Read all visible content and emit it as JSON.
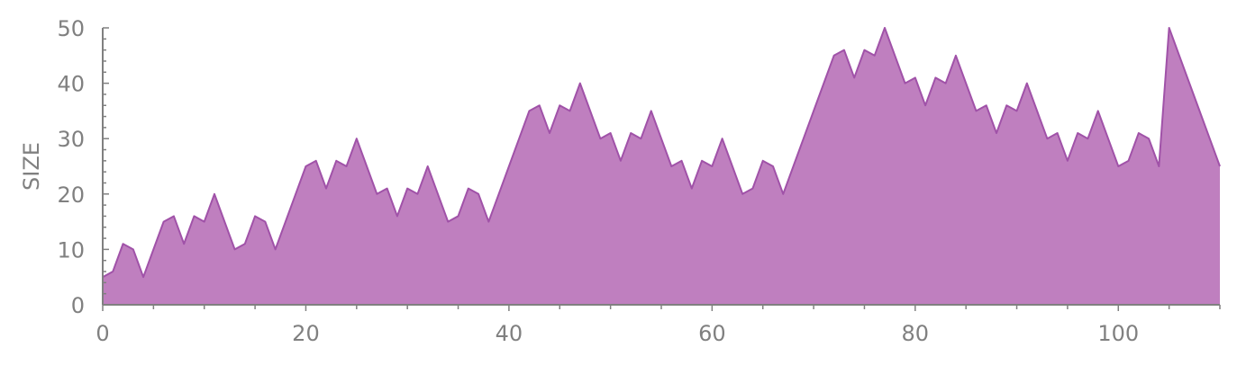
{
  "chart_data": {
    "type": "area",
    "title": "",
    "xlabel": "",
    "ylabel": "SIZE",
    "xlim": [
      0,
      110
    ],
    "ylim": [
      0,
      50
    ],
    "x_ticks": [
      0,
      20,
      40,
      60,
      80,
      100
    ],
    "y_ticks": [
      0,
      10,
      20,
      30,
      40,
      50
    ],
    "x_tick_labels": [
      "0",
      "20",
      "40",
      "60",
      "80",
      "100"
    ],
    "y_tick_labels": [
      "0",
      "10",
      "20",
      "30",
      "40",
      "50"
    ],
    "grid": false,
    "fill_color": "#bf7fbf",
    "line_color": "#a052a8",
    "axis_color": "#808080",
    "series": [
      {
        "x": [
          0,
          1,
          2,
          3,
          4,
          5,
          6,
          7,
          8,
          9,
          10,
          11,
          12,
          13,
          14,
          15,
          16,
          17,
          18,
          19,
          20,
          21,
          22,
          23,
          24,
          25,
          26,
          27,
          28,
          29,
          30,
          31,
          32,
          33,
          34,
          35,
          36,
          37,
          38,
          39,
          40,
          41,
          42,
          43,
          44,
          45,
          46,
          47,
          48,
          49,
          50,
          51,
          52,
          53,
          54,
          55,
          56,
          57,
          58,
          59,
          60,
          61,
          62,
          63,
          64,
          65,
          66,
          67,
          68,
          69,
          70,
          71,
          72,
          73,
          74,
          75,
          76,
          77,
          78,
          79,
          80,
          81,
          82,
          83,
          84,
          85,
          86,
          87,
          88,
          89,
          90,
          91,
          92,
          93,
          94,
          95,
          96,
          97,
          98,
          99,
          100,
          101,
          102,
          103,
          104,
          105,
          106,
          107,
          108,
          109,
          110
        ],
        "values": [
          5,
          6,
          11,
          10,
          5,
          10,
          15,
          16,
          11,
          16,
          15,
          20,
          15,
          10,
          11,
          16,
          15,
          10,
          15,
          20,
          25,
          26,
          21,
          26,
          25,
          30,
          25,
          20,
          21,
          16,
          21,
          20,
          25,
          20,
          15,
          16,
          21,
          20,
          15,
          20,
          25,
          30,
          35,
          36,
          31,
          36,
          35,
          40,
          35,
          30,
          31,
          26,
          31,
          30,
          35,
          30,
          25,
          26,
          21,
          26,
          25,
          30,
          25,
          20,
          21,
          26,
          25,
          20,
          25,
          30,
          35,
          40,
          45,
          46,
          41,
          46,
          45,
          50,
          45,
          40,
          41,
          36,
          41,
          40,
          45,
          40,
          35,
          36,
          31,
          36,
          35,
          40,
          35,
          30,
          31,
          26,
          31,
          30,
          35,
          30,
          25,
          26,
          31,
          30,
          25,
          50,
          45,
          40,
          35,
          30,
          25
        ]
      }
    ]
  }
}
